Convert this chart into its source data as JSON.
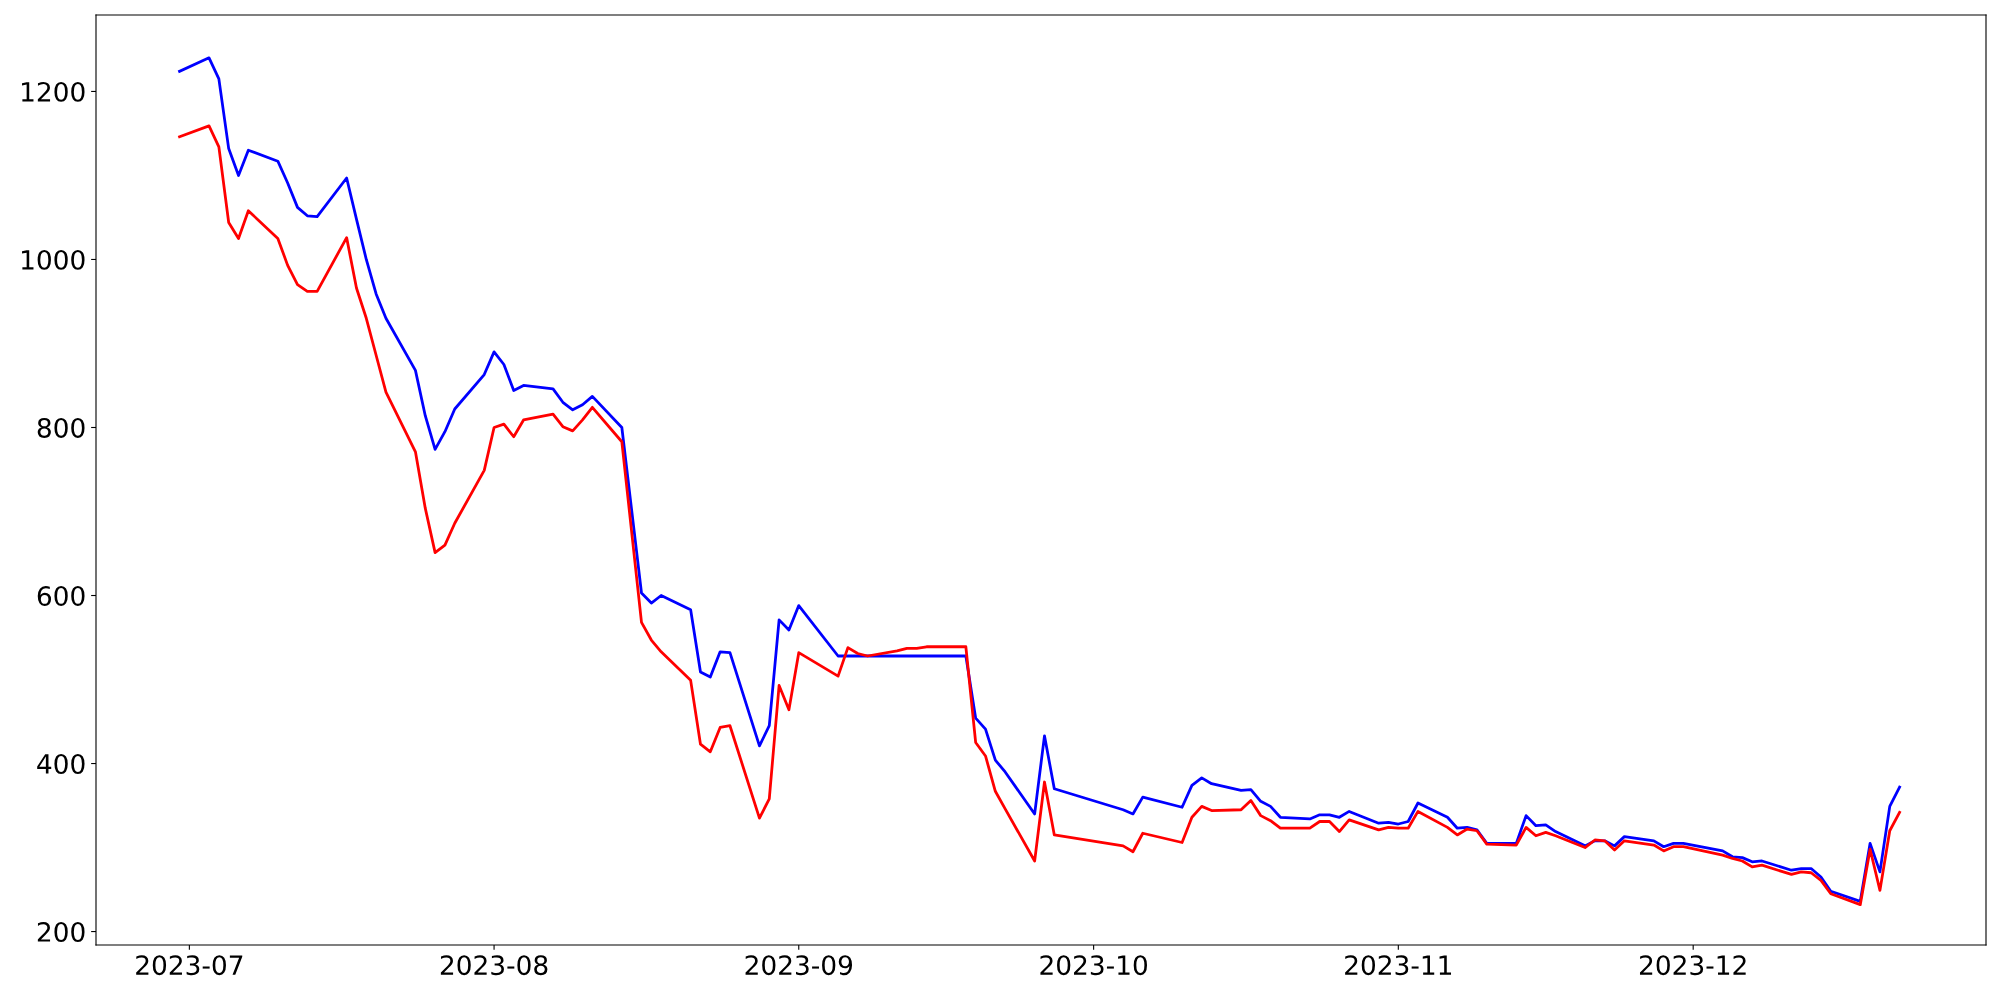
{
  "chart_data": {
    "type": "line",
    "x": [
      "2023-06-30",
      "2023-07-03",
      "2023-07-04",
      "2023-07-05",
      "2023-07-06",
      "2023-07-07",
      "2023-07-10",
      "2023-07-11",
      "2023-07-12",
      "2023-07-13",
      "2023-07-14",
      "2023-07-17",
      "2023-07-18",
      "2023-07-19",
      "2023-07-20",
      "2023-07-21",
      "2023-07-24",
      "2023-07-25",
      "2023-07-26",
      "2023-07-27",
      "2023-07-28",
      "2023-07-31",
      "2023-08-01",
      "2023-08-02",
      "2023-08-03",
      "2023-08-04",
      "2023-08-07",
      "2023-08-08",
      "2023-08-09",
      "2023-08-10",
      "2023-08-11",
      "2023-08-14",
      "2023-08-16",
      "2023-08-17",
      "2023-08-18",
      "2023-08-21",
      "2023-08-22",
      "2023-08-23",
      "2023-08-24",
      "2023-08-25",
      "2023-08-28",
      "2023-08-29",
      "2023-08-30",
      "2023-08-31",
      "2023-09-01",
      "2023-09-05",
      "2023-09-06",
      "2023-09-07",
      "2023-09-08",
      "2023-09-11",
      "2023-09-12",
      "2023-09-13",
      "2023-09-14",
      "2023-09-15",
      "2023-09-18",
      "2023-09-19",
      "2023-09-20",
      "2023-09-21",
      "2023-09-22",
      "2023-09-25",
      "2023-09-26",
      "2023-09-27",
      "2023-10-04",
      "2023-10-05",
      "2023-10-06",
      "2023-10-10",
      "2023-10-11",
      "2023-10-12",
      "2023-10-13",
      "2023-10-16",
      "2023-10-17",
      "2023-10-18",
      "2023-10-19",
      "2023-10-20",
      "2023-10-23",
      "2023-10-24",
      "2023-10-25",
      "2023-10-26",
      "2023-10-27",
      "2023-10-30",
      "2023-10-31",
      "2023-11-01",
      "2023-11-02",
      "2023-11-03",
      "2023-11-06",
      "2023-11-07",
      "2023-11-08",
      "2023-11-09",
      "2023-11-10",
      "2023-11-13",
      "2023-11-14",
      "2023-11-15",
      "2023-11-16",
      "2023-11-17",
      "2023-11-20",
      "2023-11-21",
      "2023-11-22",
      "2023-11-23",
      "2023-11-24",
      "2023-11-27",
      "2023-11-28",
      "2023-11-29",
      "2023-11-30",
      "2023-12-04",
      "2023-12-05",
      "2023-12-06",
      "2023-12-07",
      "2023-12-08",
      "2023-12-11",
      "2023-12-12",
      "2023-12-13",
      "2023-12-14",
      "2023-12-15",
      "2023-12-18",
      "2023-12-19",
      "2023-12-20",
      "2023-12-21",
      "2023-12-22"
    ],
    "series": [
      {
        "color": "#0000ff",
        "values": [
          1224,
          1240,
          1215,
          1132,
          1100,
          1130,
          1117,
          1091,
          1062,
          1052,
          1051,
          1097,
          1048,
          1000,
          959,
          930,
          868,
          814,
          774,
          795,
          822,
          863,
          890,
          875,
          844,
          850,
          846,
          830,
          821,
          827,
          837,
          800,
          603,
          591,
          600,
          583,
          509,
          503,
          533,
          532,
          421,
          445,
          571,
          559,
          588,
          528,
          528,
          528,
          528,
          528,
          528,
          528,
          528,
          528,
          528,
          454,
          441,
          404,
          390,
          340,
          433,
          370,
          345,
          340,
          360,
          348,
          374,
          383,
          376,
          368,
          369,
          355,
          349,
          336,
          334,
          339,
          339,
          336,
          343,
          329,
          330,
          328,
          331,
          353,
          336,
          323,
          324,
          321,
          305,
          305,
          338,
          326,
          327,
          319,
          302,
          308,
          308,
          302,
          313,
          308,
          301,
          305,
          305,
          296,
          289,
          288,
          283,
          284,
          273,
          275,
          275,
          265,
          248,
          236,
          305,
          271,
          349,
          372
        ]
      },
      {
        "color": "#ff0000",
        "values": [
          1146,
          1159,
          1134,
          1044,
          1025,
          1058,
          1025,
          993,
          970,
          962,
          962,
          1026,
          966,
          930,
          886,
          842,
          771,
          704,
          651,
          660,
          686,
          749,
          800,
          804,
          789,
          809,
          816,
          801,
          796,
          809,
          824,
          783,
          568,
          547,
          533,
          499,
          423,
          414,
          443,
          445,
          335,
          358,
          493,
          464,
          532,
          504,
          538,
          531,
          528,
          534,
          537,
          537,
          539,
          539,
          539,
          425,
          409,
          367,
          346,
          284,
          378,
          315,
          302,
          295,
          317,
          306,
          336,
          349,
          344,
          345,
          356,
          338,
          332,
          323,
          323,
          331,
          331,
          319,
          333,
          321,
          324,
          323,
          323,
          343,
          324,
          315,
          322,
          320,
          304,
          303,
          324,
          314,
          318,
          314,
          300,
          309,
          308,
          297,
          308,
          303,
          296,
          301,
          301,
          291,
          287,
          284,
          277,
          279,
          268,
          271,
          270,
          261,
          245,
          232,
          298,
          249,
          320,
          342
        ]
      }
    ],
    "xlim": [
      "2023-06-21T12:00",
      "2023-12-30T19:00"
    ],
    "xticks": [
      "2023-07",
      "2023-08",
      "2023-09",
      "2023-10",
      "2023-11",
      "2023-12"
    ],
    "ylim": [
      184,
      1291
    ],
    "yticks": [
      200,
      400,
      600,
      800,
      1000,
      1200
    ],
    "grid": false,
    "marker": "none",
    "line_style": "solid"
  }
}
